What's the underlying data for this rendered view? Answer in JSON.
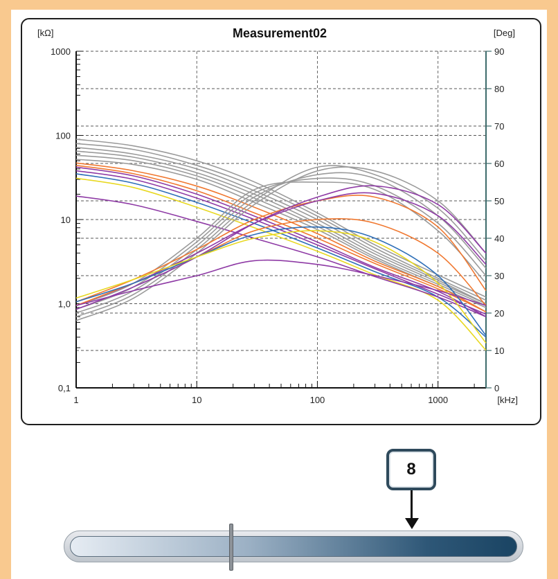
{
  "chart_data": {
    "type": "line",
    "title": "Measurement02",
    "y_left_unit": "[kΩ]",
    "y_right_unit": "[Deg]",
    "x_unit": "[kHz]",
    "x_scale": "log",
    "xlim": [
      1,
      2500
    ],
    "y_left_scale": "log",
    "y_left_lim": [
      0.1,
      1000
    ],
    "y_right_lim": [
      0,
      90
    ],
    "x_ticks": [
      1,
      10,
      100,
      1000
    ],
    "x_tick_labels": [
      "1",
      "10",
      "100",
      "1000"
    ],
    "y_left_ticks": [
      0.1,
      1,
      10,
      100,
      1000
    ],
    "y_left_tick_labels": [
      "0,1",
      "1,0",
      "10",
      "100",
      "1000"
    ],
    "y_right_ticks": [
      0,
      10,
      20,
      30,
      40,
      50,
      60,
      70,
      80,
      90
    ],
    "y_right_tick_labels": [
      "0",
      "10",
      "20",
      "30",
      "40",
      "50",
      "60",
      "70",
      "80",
      "90"
    ],
    "grid": true,
    "legend": "none",
    "x": [
      1,
      3,
      10,
      30,
      100,
      300,
      1000,
      2500
    ],
    "series": [
      {
        "axis": "left",
        "color": "#9a9a9a",
        "values": [
          90,
          75,
          50,
          28,
          12,
          5,
          2.2,
          1.2
        ]
      },
      {
        "axis": "left",
        "color": "#9a9a9a",
        "values": [
          80,
          68,
          44,
          25,
          11,
          4.6,
          2.0,
          1.1
        ]
      },
      {
        "axis": "left",
        "color": "#9a9a9a",
        "values": [
          72,
          60,
          40,
          22,
          10,
          4.2,
          1.9,
          1.0
        ]
      },
      {
        "axis": "left",
        "color": "#9a9a9a",
        "values": [
          65,
          55,
          36,
          20,
          9,
          3.9,
          1.8,
          1.0
        ]
      },
      {
        "axis": "left",
        "color": "#9a9a9a",
        "values": [
          58,
          50,
          33,
          18,
          8.3,
          3.6,
          1.7,
          0.95
        ]
      },
      {
        "axis": "left",
        "color": "#9a9a9a",
        "values": [
          52,
          45,
          30,
          16,
          7.6,
          3.4,
          1.6,
          0.9
        ]
      },
      {
        "axis": "left",
        "color": "#f07830",
        "values": [
          47,
          38,
          25,
          14,
          6.8,
          3.2,
          1.6,
          0.8
        ]
      },
      {
        "axis": "left",
        "color": "#f07830",
        "values": [
          44,
          35,
          22,
          12,
          6.0,
          3.0,
          1.5,
          0.8
        ]
      },
      {
        "axis": "left",
        "color": "#8e3aa5",
        "values": [
          42,
          33,
          20,
          11,
          5.4,
          2.7,
          1.4,
          0.7
        ]
      },
      {
        "axis": "left",
        "color": "#8e3aa5",
        "values": [
          38,
          30,
          18,
          10,
          5.0,
          2.6,
          1.3,
          0.75
        ]
      },
      {
        "axis": "left",
        "color": "#2e6fb8",
        "values": [
          35,
          27,
          16,
          9,
          4.6,
          2.4,
          1.2,
          0.4
        ]
      },
      {
        "axis": "left",
        "color": "#e8d820",
        "values": [
          31,
          24,
          14,
          8,
          4.2,
          2.2,
          1.1,
          0.28
        ]
      },
      {
        "axis": "left",
        "color": "#8e3aa5",
        "values": [
          19,
          15,
          9.5,
          6,
          3.6,
          2.1,
          1.2,
          0.7
        ]
      },
      {
        "axis": "right",
        "color": "#9a9a9a",
        "values": [
          18,
          24,
          36,
          49,
          58,
          58,
          50,
          36
        ]
      },
      {
        "axis": "right",
        "color": "#9a9a9a",
        "values": [
          19,
          25,
          37,
          50,
          59,
          57,
          48,
          34
        ]
      },
      {
        "axis": "right",
        "color": "#9a9a9a",
        "values": [
          20,
          26,
          38,
          51,
          57,
          56,
          46,
          32
        ]
      },
      {
        "axis": "right",
        "color": "#9a9a9a",
        "values": [
          21,
          27,
          39,
          52,
          56,
          54,
          44,
          30
        ]
      },
      {
        "axis": "right",
        "color": "#9a9a9a",
        "values": [
          22,
          28,
          40,
          53,
          55,
          53,
          42,
          28
        ]
      },
      {
        "axis": "right",
        "color": "#f07830",
        "values": [
          23,
          29,
          37,
          45,
          50,
          51,
          43,
          26
        ]
      },
      {
        "axis": "right",
        "color": "#8e3aa5",
        "values": [
          21,
          27,
          35,
          44,
          51,
          54,
          49,
          36
        ]
      },
      {
        "axis": "right",
        "color": "#8e3aa5",
        "values": [
          22,
          28,
          36,
          44,
          50,
          52,
          46,
          33
        ]
      },
      {
        "axis": "right",
        "color": "#f07830",
        "values": [
          22,
          28,
          35,
          42,
          45,
          44,
          36,
          22
        ]
      },
      {
        "axis": "right",
        "color": "#2e6fb8",
        "values": [
          23,
          28,
          35,
          41,
          43,
          40,
          30,
          14
        ]
      },
      {
        "axis": "right",
        "color": "#e8d820",
        "values": [
          24,
          29,
          35,
          40,
          42,
          39,
          28,
          12
        ]
      },
      {
        "axis": "right",
        "color": "#8e3aa5",
        "values": [
          22,
          26,
          30,
          34,
          33,
          30,
          26,
          22
        ]
      }
    ]
  },
  "callout": {
    "label": "8"
  },
  "slider": {
    "value_fraction": 0.36
  }
}
